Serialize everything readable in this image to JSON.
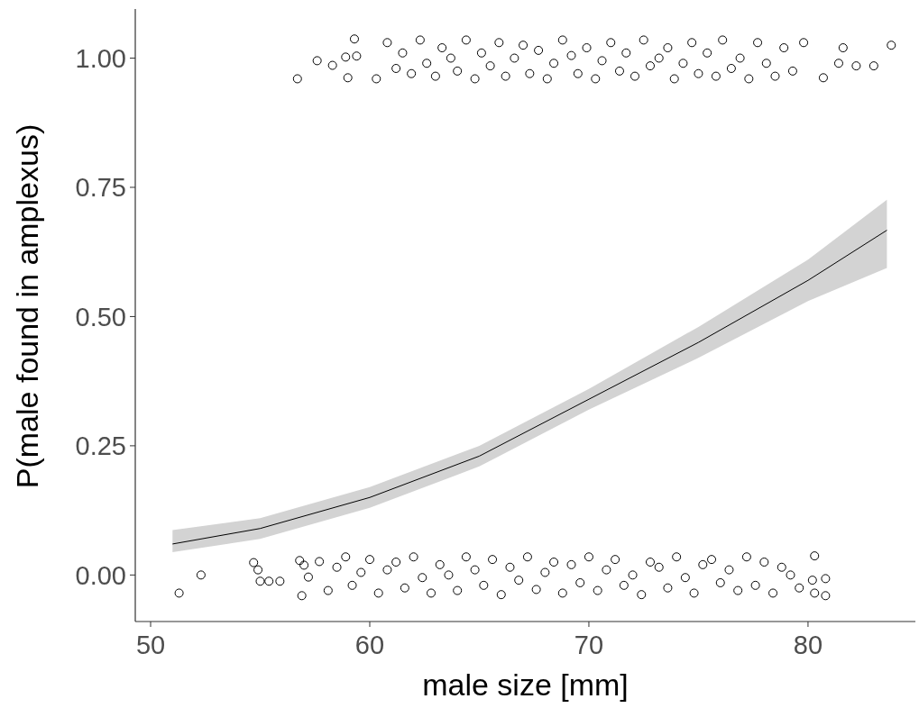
{
  "chart_data": {
    "type": "scatter",
    "xlabel": "male size [mm]",
    "ylabel": "P(male found in amplexus)",
    "xlim": [
      49.3,
      84.9
    ],
    "ylim": [
      -0.09,
      1.095
    ],
    "xticks": [
      50,
      60,
      70,
      80
    ],
    "yticks": [
      {
        "value": 0,
        "label": "0.00"
      },
      {
        "value": 0.25,
        "label": "0.25"
      },
      {
        "value": 0.5,
        "label": "0.50"
      },
      {
        "value": 0.75,
        "label": "0.75"
      },
      {
        "value": 1,
        "label": "1.00"
      }
    ],
    "grid": false,
    "series": [
      {
        "marker": "circle",
        "color": "#000000",
        "x": [
          56.7,
          57.6,
          58.3,
          58.9,
          59.0,
          59.3,
          59.4,
          60.3,
          60.8,
          61.2,
          61.5,
          61.9,
          62.3,
          62.6,
          63.0,
          63.3,
          63.7,
          64.0,
          64.4,
          64.8,
          65.1,
          65.5,
          65.9,
          66.2,
          66.6,
          67.0,
          67.3,
          67.7,
          68.1,
          68.4,
          68.8,
          69.2,
          69.5,
          69.9,
          70.3,
          70.6,
          71.0,
          71.4,
          71.7,
          72.1,
          72.5,
          72.8,
          73.2,
          73.6,
          73.9,
          74.3,
          74.7,
          75.0,
          75.4,
          75.8,
          76.1,
          76.5,
          76.9,
          77.3,
          77.7,
          78.1,
          78.5,
          78.9,
          79.3,
          79.8,
          80.7,
          81.4,
          81.6,
          82.2,
          83.0,
          83.8
        ],
        "values": [
          0.96,
          0.995,
          0.986,
          1.002,
          0.962,
          1.037,
          1.004,
          0.96,
          1.03,
          0.98,
          1.01,
          0.97,
          1.035,
          0.99,
          0.965,
          1.02,
          1.0,
          0.975,
          1.035,
          0.96,
          1.01,
          0.985,
          1.03,
          0.965,
          1.0,
          1.025,
          0.97,
          1.015,
          0.96,
          0.99,
          1.035,
          1.005,
          0.97,
          1.02,
          0.96,
          0.995,
          1.03,
          0.975,
          1.01,
          0.965,
          1.035,
          0.985,
          1.0,
          1.02,
          0.96,
          0.99,
          1.03,
          0.97,
          1.01,
          0.965,
          1.035,
          0.98,
          1.0,
          0.96,
          1.03,
          0.99,
          0.965,
          1.02,
          0.975,
          1.03,
          0.962,
          0.99,
          1.02,
          0.985,
          0.985,
          1.025
        ]
      },
      {
        "marker": "circle",
        "color": "#000000",
        "x": [
          51.3,
          52.3,
          54.7,
          54.9,
          55.0,
          55.4,
          55.9,
          56.8,
          56.9,
          57.0,
          57.2,
          57.7,
          58.1,
          58.5,
          58.9,
          59.2,
          59.6,
          60.0,
          60.4,
          60.8,
          61.2,
          61.6,
          62.0,
          62.4,
          62.8,
          63.2,
          63.6,
          64.0,
          64.4,
          64.8,
          65.2,
          65.6,
          66.0,
          66.4,
          66.8,
          67.2,
          67.6,
          68.0,
          68.4,
          68.8,
          69.2,
          69.6,
          70.0,
          70.4,
          70.8,
          71.2,
          71.6,
          72.0,
          72.4,
          72.8,
          73.2,
          73.6,
          74.0,
          74.4,
          74.8,
          75.2,
          75.6,
          76.0,
          76.4,
          76.8,
          77.2,
          77.6,
          78.0,
          78.4,
          78.8,
          79.2,
          79.6,
          80.2,
          80.3,
          80.3,
          80.8,
          80.8
        ],
        "values": [
          -0.035,
          0.0,
          0.024,
          0.01,
          -0.012,
          -0.012,
          -0.012,
          0.028,
          -0.04,
          0.019,
          -0.004,
          0.026,
          -0.03,
          0.015,
          0.035,
          -0.02,
          0.005,
          0.03,
          -0.035,
          0.01,
          0.025,
          -0.025,
          0.035,
          -0.005,
          -0.035,
          0.02,
          0.0,
          -0.03,
          0.035,
          0.01,
          -0.02,
          0.03,
          -0.038,
          0.015,
          -0.01,
          0.035,
          -0.028,
          0.005,
          0.025,
          -0.035,
          0.02,
          -0.015,
          0.035,
          -0.03,
          0.01,
          0.03,
          -0.02,
          0.0,
          -0.038,
          0.025,
          0.015,
          -0.025,
          0.035,
          -0.005,
          -0.035,
          0.02,
          0.03,
          -0.015,
          0.01,
          -0.03,
          0.035,
          -0.02,
          0.025,
          -0.035,
          0.015,
          0.0,
          -0.025,
          -0.01,
          0.037,
          -0.035,
          -0.007,
          -0.04
        ]
      },
      {
        "type": "line",
        "marker": "none",
        "color": "#000000",
        "x": [
          51.0,
          55,
          60,
          65,
          70,
          75,
          80,
          83.6
        ],
        "values": [
          0.06,
          0.09,
          0.15,
          0.23,
          0.34,
          0.45,
          0.57,
          0.667
        ],
        "lower": [
          0.044,
          0.07,
          0.13,
          0.21,
          0.32,
          0.42,
          0.53,
          0.594
        ],
        "upper": [
          0.087,
          0.11,
          0.17,
          0.25,
          0.36,
          0.48,
          0.61,
          0.726
        ]
      }
    ]
  }
}
